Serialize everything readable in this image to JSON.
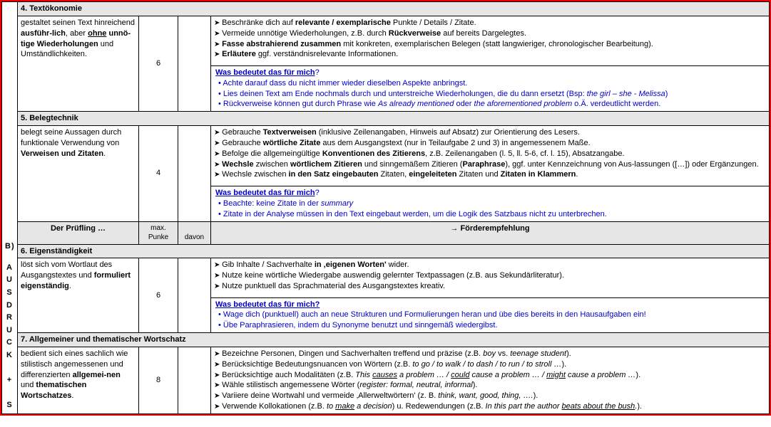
{
  "s4": {
    "title": "4. Textökonomie",
    "desc": "gestaltet seinen Text hinreichend <b>ausführ-lich</b>, aber <b><span class='ul'>ohne</span> unnö-tige Wiederholungen</b> und Umständlichkeiten.",
    "pts": "6",
    "bullets": [
      "Beschränke dich auf <b>relevante / exemplarische</b> Punkte / Details / Zitate.",
      "Vermeide unnötige Wiederholungen, z.B. durch <b>Rückverweise</b> auf bereits Dargelegtes.",
      "<b>Fasse abstrahierend zusammen</b> mit konkreten, exemplarischen Belegen (statt langwieriger, chronologischer Bearbeitung).",
      "<b>Erläutere</b> ggf. verständnisrelevante Informationen."
    ],
    "hint_title": "Was bedeutet das für mich",
    "hints": [
      "Achte darauf dass du nicht immer wieder dieselben Aspekte anbringst.",
      "Lies deinen Text am Ende nochmals durch und unterstreiche Wiederholungen, die du dann ersetzt (Bsp: <span class='ital'>the girl – she - Melissa</span>)",
      "Rückverweise können gut durch Phrase wie <span class='ital'>As already mentioned</span> oder <span class='ital'>the aforementioned problem</span> o.Ä. verdeutlicht werden."
    ]
  },
  "s5": {
    "title": "5. Belegtechnik",
    "desc": "belegt seine Aussagen durch funktionale Verwendung von <b>Verweisen und Zitaten</b>.",
    "pts": "4",
    "bullets": [
      "Gebrauche <b>Textverweisen</b> (inklusive Zeilenangaben, Hinweis auf Absatz) zur Orientierung des Lesers.",
      "Gebrauche <b>wörtliche Zitate</b> aus dem Ausgangstext (nur in Teilaufgabe 2 und 3) in angemessenem Maße.",
      "Befolge die allgemeingültige <b>Konventionen des Zitierens</b>, z.B. Zeilenangaben (l. 5, ll. 5-6, cf. l. 15), Absatzangabe.",
      "<b>Wechsle</b> zwischen <b>wörtlichem Zitieren</b> und sinngemäßem Zitieren (<b>Paraphrase</b>), ggf. unter Kennzeichnung von Aus-lassungen ([…]) oder Ergänzungen.",
      "Wechsle zwischen <b>in den Satz eingebauten</b> Zitaten, <b>eingeleiteten</b> Zitaten und <b>Zitaten in Klammern</b>."
    ],
    "hint_title": "Was bedeutet das für mich",
    "hints": [
      "Beachte: keine Zitate in der <span class='ital'>summary</span>",
      "Zitate in der Analyse müssen in den Text eingebaut werden, um die Logik des Satzbaus nicht zu unterbrechen."
    ]
  },
  "hdr": {
    "pruefling": "Der Prüfling …",
    "max": "max. Punke",
    "davon": "davon",
    "reco": "Förderempfehlung",
    "side_letter": "B)",
    "side_text": "A U S D R U C K + S"
  },
  "s6": {
    "title": "6. Eigenständigkeit",
    "desc": "löst sich vom Wortlaut des Ausgangstextes und <b>formuliert eigenständig</b>.",
    "pts": "6",
    "bullets": [
      "Gib Inhalte / Sachverhalte <b>in ‚eigenen Worten'</b> wider.",
      "Nutze keine wörtliche Wiedergabe auswendig gelernter Textpassagen (z.B. aus Sekundärliteratur).",
      "Nutze punktuell das Sprachmaterial des Ausgangstextes kreativ."
    ],
    "hint_title": "Was bedeutet das für mich?",
    "hints": [
      "Wage dich (punktuell) auch an neue Strukturen und Formulierungen heran und übe dies bereits in den Hausaufgaben ein!",
      "Übe Paraphrasieren, indem du Synonyme benutzt und sinngemäß wiedergibst."
    ]
  },
  "s7": {
    "title": "7. Allgemeiner und thematischer Wortschatz",
    "desc": "bedient sich eines sachlich wie stilistisch angemessenen und differenzierten <b>allgemei-nen</b> und <b>thematischen Wortschatzes</b>.",
    "pts": "8",
    "bullets": [
      "Bezeichne Personen, Dingen und Sachverhalten treffend und präzise (z.B. <span class='ital'>boy</span> vs. <span class='ital'>teenage student</span>).",
      "Berücksichtige Bedeutungsnuancen von Wörtern (z.B. <span class='ital'>to go / to walk / to dash / to run / to stroll …</span>).",
      "Berücksichtige auch Modalitäten (z.B. <span class='ital'>This <span class='ul'>causes</span> a problem … / <span class='ul'>could</span> cause a problem … / <span class='ul'>might</span> cause a problem …</span>).",
      "Wähle stilistisch angemessene Wörter (<span class='ital'>register: formal, neutral, informal</span>).",
      "Variiere deine Wortwahl und vermeide ‚Allerweltwörtern' (z. B. <span class='ital'>think, want, good, thing, ….</span>).",
      "Verwende Kollokationen (z.B. <span class='ital'>to <span class='ul'>make</span> a decision</span>) u. Redewendungen (z.B. <span class='ital'>In this part the author <span class='ul'>beats about the bush</span>.</span>)."
    ]
  }
}
